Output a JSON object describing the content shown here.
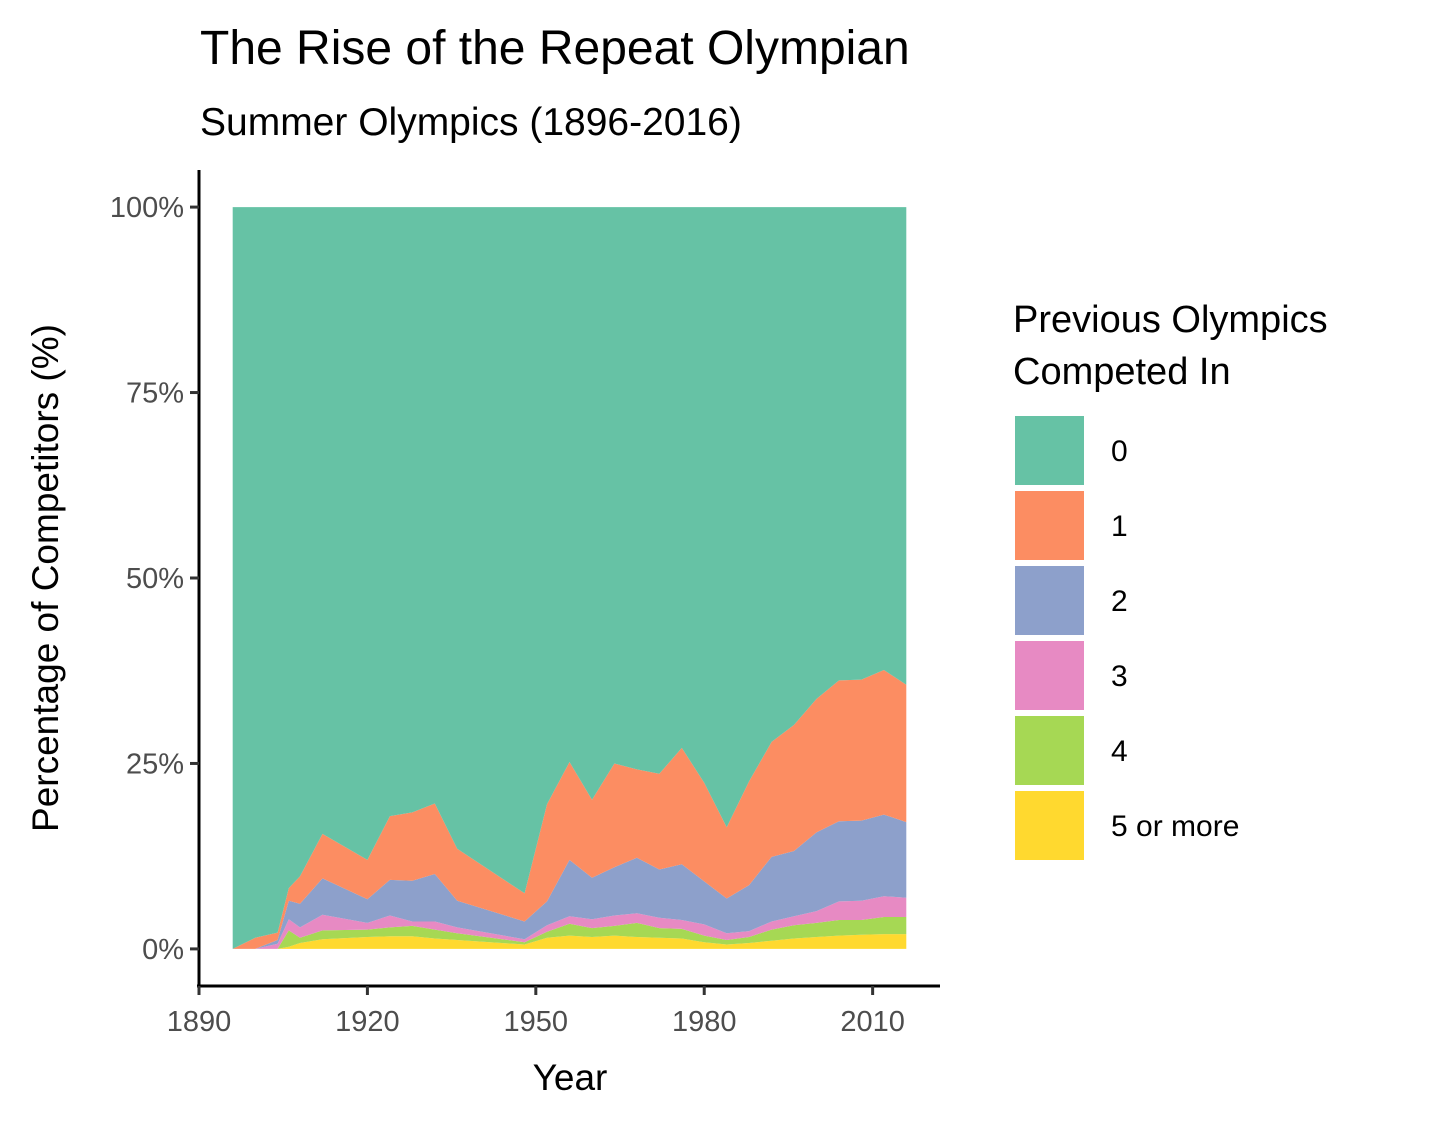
{
  "chart_data": {
    "type": "area",
    "stacked": "percent",
    "title": "The Rise of the Repeat Olympian",
    "subtitle": "Summer Olympics (1896-2016)",
    "xlabel": "Year",
    "ylabel": "Percentage of Competitors (%)",
    "xlim": [
      1890,
      2022
    ],
    "ylim": [
      -5,
      105
    ],
    "x_ticks": [
      1890,
      1920,
      1950,
      1980,
      2010
    ],
    "y_ticks": [
      0,
      25,
      50,
      75,
      100
    ],
    "y_tick_labels": [
      "0%",
      "25%",
      "50%",
      "75%",
      "100%"
    ],
    "legend": {
      "title_lines": [
        "Previous Olympics",
        "Competed In"
      ],
      "position": "right"
    },
    "x": [
      1896,
      1900,
      1904,
      1906,
      1908,
      1912,
      1920,
      1924,
      1928,
      1932,
      1936,
      1948,
      1952,
      1956,
      1960,
      1964,
      1968,
      1972,
      1976,
      1980,
      1984,
      1988,
      1992,
      1996,
      2000,
      2004,
      2008,
      2012,
      2016
    ],
    "series": [
      {
        "name": "5 or more",
        "color": "#FFD92F",
        "values": [
          0,
          0,
          0,
          0.3,
          0.8,
          1.3,
          1.6,
          1.7,
          1.7,
          1.4,
          1.2,
          0.6,
          1.5,
          1.8,
          1.6,
          1.8,
          1.6,
          1.5,
          1.4,
          0.9,
          0.6,
          0.8,
          1.1,
          1.4,
          1.6,
          1.8,
          1.9,
          2.0,
          2.0
        ]
      },
      {
        "name": "4",
        "color": "#A6D854",
        "values": [
          0,
          0,
          0,
          2.2,
          0.7,
          1.2,
          1.0,
          1.2,
          1.4,
          1.2,
          0.9,
          0.3,
          0.8,
          1.6,
          1.2,
          1.3,
          1.9,
          1.3,
          1.3,
          0.9,
          0.6,
          0.8,
          1.5,
          1.8,
          1.9,
          2.1,
          2.0,
          2.3,
          2.3
        ]
      },
      {
        "name": "3",
        "color": "#E78AC3",
        "values": [
          0,
          0,
          0.7,
          1.5,
          1.4,
          2.1,
          0.9,
          1.6,
          0.6,
          1.1,
          0.8,
          0.4,
          0.9,
          1.0,
          1.2,
          1.4,
          1.3,
          1.4,
          1.2,
          1.5,
          0.9,
          0.8,
          1.1,
          1.2,
          1.6,
          2.5,
          2.6,
          2.8,
          2.6
        ]
      },
      {
        "name": "2",
        "color": "#8DA0CB",
        "values": [
          0,
          0,
          0.5,
          2.5,
          3.2,
          4.9,
          3.2,
          4.8,
          5.5,
          6.4,
          3.6,
          2.4,
          3.2,
          7.6,
          5.6,
          6.5,
          7.5,
          6.5,
          7.5,
          5.8,
          4.7,
          6.2,
          8.7,
          8.8,
          10.6,
          10.8,
          10.8,
          11.0,
          10.2
        ]
      },
      {
        "name": "1",
        "color": "#FC8D62",
        "values": [
          0,
          1.5,
          1.0,
          1.7,
          3.7,
          6.0,
          5.3,
          8.6,
          9.2,
          9.5,
          7.0,
          3.8,
          13.1,
          13.2,
          10.5,
          14.0,
          11.9,
          12.9,
          15.7,
          13.3,
          9.6,
          14.0,
          15.5,
          17.0,
          18.0,
          19.0,
          19.0,
          19.5,
          18.5
        ]
      },
      {
        "name": "0",
        "color": "#66C2A5",
        "values": [
          100,
          98.5,
          97.8,
          91.8,
          90.2,
          84.5,
          88.0,
          82.1,
          81.6,
          80.4,
          86.5,
          92.5,
          80.5,
          74.8,
          79.9,
          75.0,
          75.8,
          76.4,
          72.9,
          77.6,
          83.6,
          77.4,
          72.1,
          69.8,
          66.3,
          63.8,
          63.7,
          62.4,
          64.4
        ]
      }
    ],
    "legend_order": [
      "0",
      "1",
      "2",
      "3",
      "4",
      "5 or more"
    ]
  }
}
